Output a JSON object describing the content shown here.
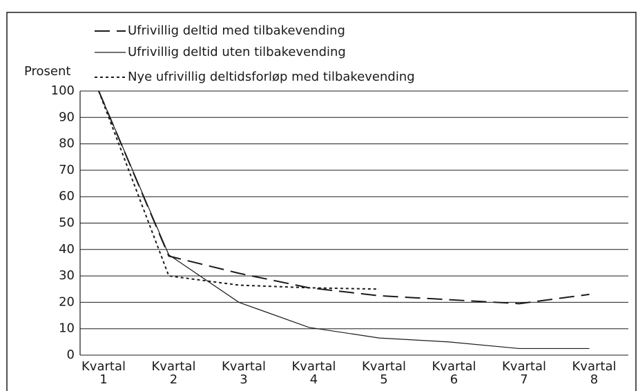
{
  "chart_data": {
    "type": "line",
    "y_label": "Prosent",
    "categories": [
      "Kvartal 1",
      "Kvartal 2",
      "Kvartal 3",
      "Kvartal 4",
      "Kvartal 5",
      "Kvartal 6",
      "Kvartal 7",
      "Kvartal 8"
    ],
    "series": [
      {
        "name": "Ufrivillig deltid med tilbakevending",
        "color": "#1a1a1a",
        "dash": "22 10",
        "width": 2,
        "values": [
          100,
          37.5,
          31,
          25.5,
          22.5,
          21,
          19.5,
          23
        ]
      },
      {
        "name": "Ufrivillig deltid uten tilbakevending",
        "color": "#1a1a1a",
        "dash": "none",
        "width": 1.2,
        "values": [
          100,
          38,
          20,
          10.5,
          6.5,
          5,
          2.5,
          2.5
        ]
      },
      {
        "name": "Nye ufrivillig deltidsforløp med tilbakevending",
        "color": "#1a1a1a",
        "dash": "4 4",
        "width": 2,
        "values": [
          100,
          30,
          26.5,
          25.5,
          25,
          null,
          null,
          null
        ]
      }
    ],
    "ylim": [
      0,
      100
    ],
    "yticks": [
      0,
      10,
      20,
      30,
      40,
      50,
      60,
      70,
      80,
      90,
      100
    ],
    "grid": true
  }
}
